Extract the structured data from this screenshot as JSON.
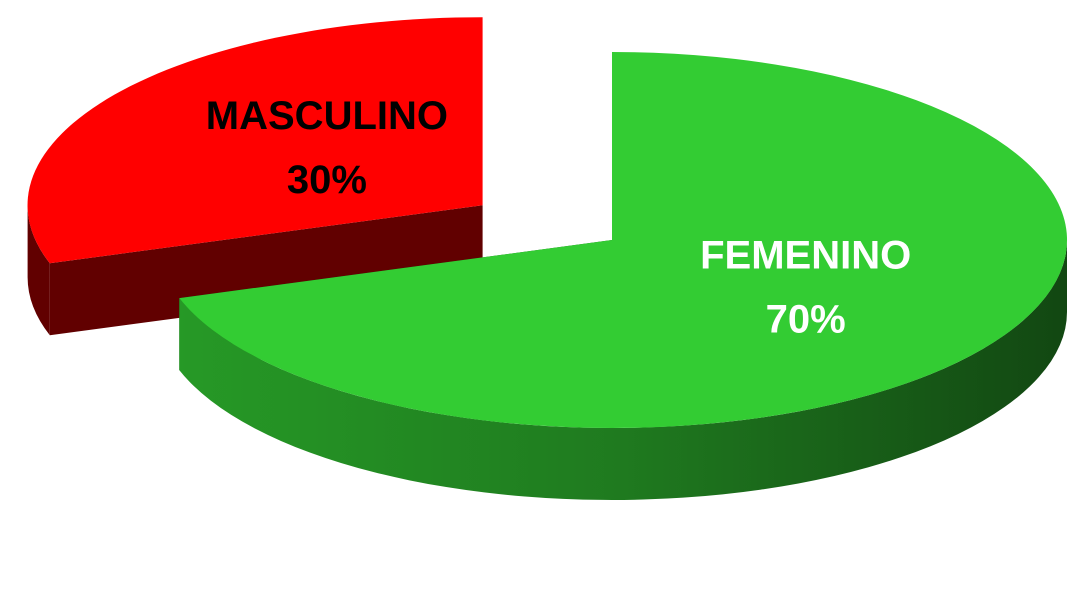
{
  "chart_data": {
    "type": "pie",
    "categories": [
      "FEMENINO",
      "MASCULINO"
    ],
    "values": [
      70,
      30
    ],
    "value_labels": [
      "70%",
      "30%"
    ],
    "colors": [
      "#33cc33",
      "#ff0000"
    ],
    "label_colors": [
      "#ffffff",
      "#000000"
    ]
  }
}
